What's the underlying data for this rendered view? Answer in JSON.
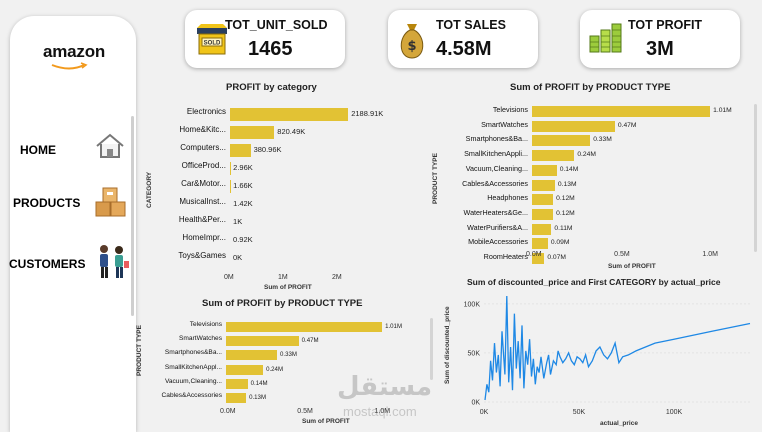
{
  "sidebar": {
    "logo": "amazon",
    "items": [
      {
        "label": "HOME",
        "icon": "home-icon"
      },
      {
        "label": "PRODUCTS",
        "icon": "boxes-icon"
      },
      {
        "label": "CUSTOMERS",
        "icon": "customers-icon"
      }
    ]
  },
  "kpis": [
    {
      "title": "TOT_UNIT_SOLD",
      "value": "1465",
      "icon": "store-sold-icon",
      "icon_text": "SOLD"
    },
    {
      "title": "TOT SALES",
      "value": "4.58M",
      "icon": "money-bag-icon"
    },
    {
      "title": "TOT PROFIT",
      "value": "3M",
      "icon": "coin-stacks-icon"
    }
  ],
  "colors": {
    "bar": "#e2c234",
    "line": "#1e88e5",
    "background": "#f1f1f1",
    "card": "#ffffff"
  },
  "charts": {
    "profit_by_category": {
      "title": "PROFIT by category",
      "ylabel": "CATEGORY",
      "xlabel": "Sum of PROFIT",
      "xticks": [
        "0M",
        "1M",
        "2M"
      ],
      "rows": [
        {
          "label": "Electronics",
          "value_label": "2188.91K"
        },
        {
          "label": "Home&Kitc...",
          "value_label": "820.49K"
        },
        {
          "label": "Computers...",
          "value_label": "380.96K"
        },
        {
          "label": "OfficeProd...",
          "value_label": "2.96K"
        },
        {
          "label": "Car&Motor...",
          "value_label": "1.66K"
        },
        {
          "label": "MusicalInst...",
          "value_label": "1.42K"
        },
        {
          "label": "Health&Per...",
          "value_label": "1K"
        },
        {
          "label": "HomeImpr...",
          "value_label": "0.92K"
        },
        {
          "label": "Toys&Games",
          "value_label": "0K"
        }
      ]
    },
    "profit_by_type_right": {
      "title": "Sum of PROFIT by PRODUCT TYPE",
      "ylabel": "PRODUCT TYPE",
      "xlabel": "Sum of PROFIT",
      "xticks": [
        "0.0M",
        "0.5M",
        "1.0M"
      ],
      "rows": [
        {
          "label": "Televisions",
          "value_label": "1.01M"
        },
        {
          "label": "SmartWatches",
          "value_label": "0.47M"
        },
        {
          "label": "Smartphones&Ba...",
          "value_label": "0.33M"
        },
        {
          "label": "SmallKitchenAppli...",
          "value_label": "0.24M"
        },
        {
          "label": "Vacuum,Cleaning...",
          "value_label": "0.14M"
        },
        {
          "label": "Cables&Accessories",
          "value_label": "0.13M"
        },
        {
          "label": "Headphones",
          "value_label": "0.12M"
        },
        {
          "label": "WaterHeaters&Ge...",
          "value_label": "0.12M"
        },
        {
          "label": "WaterPurifiers&A...",
          "value_label": "0.11M"
        },
        {
          "label": "MobileAccessories",
          "value_label": "0.09M"
        },
        {
          "label": "RoomHeaters",
          "value_label": "0.07M"
        }
      ]
    },
    "profit_by_type_bottom": {
      "title": "Sum of PROFIT by PRODUCT TYPE",
      "ylabel": "PRODUCT TYPE",
      "xlabel": "Sum of PROFIT",
      "xticks": [
        "0.0M",
        "0.5M",
        "1.0M"
      ],
      "rows": [
        {
          "label": "Televisions",
          "value_label": "1.01M"
        },
        {
          "label": "SmartWatches",
          "value_label": "0.47M"
        },
        {
          "label": "Smartphones&Ba...",
          "value_label": "0.33M"
        },
        {
          "label": "SmallKitchenAppl...",
          "value_label": "0.24M"
        },
        {
          "label": "Vacuum,Cleaning...",
          "value_label": "0.14M"
        },
        {
          "label": "Cables&Accessories",
          "value_label": "0.13M"
        }
      ]
    },
    "line": {
      "title": "Sum of discounted_price and First CATEGORY by actual_price",
      "ylabel": "Sum of discounted_price",
      "xlabel": "actual_price",
      "yticks": [
        "0K",
        "50K",
        "100K"
      ],
      "xticks": [
        "0K",
        "50K",
        "100K"
      ]
    }
  },
  "watermark": {
    "arabic": "مستقل",
    "latin": "mostaql.com"
  },
  "chart_data": [
    {
      "type": "bar",
      "title": "PROFIT by category",
      "xlabel": "Sum of PROFIT",
      "ylabel": "CATEGORY",
      "categories": [
        "Electronics",
        "Home&Kitc...",
        "Computers...",
        "OfficeProd...",
        "Car&Motor...",
        "MusicalInst...",
        "Health&Per...",
        "HomeImpr...",
        "Toys&Games"
      ],
      "values": [
        2188.91,
        820.49,
        380.96,
        2.96,
        1.66,
        1.42,
        1.0,
        0.92,
        0
      ],
      "xlim": [
        0,
        2500
      ]
    },
    {
      "type": "bar",
      "title": "Sum of PROFIT by PRODUCT TYPE",
      "xlabel": "Sum of PROFIT",
      "ylabel": "PRODUCT TYPE",
      "categories": [
        "Televisions",
        "SmartWatches",
        "Smartphones&Ba...",
        "SmallKitchenAppli...",
        "Vacuum,Cleaning...",
        "Cables&Accessories",
        "Headphones",
        "WaterHeaters&Ge...",
        "WaterPurifiers&A...",
        "MobileAccessories",
        "RoomHeaters"
      ],
      "values": [
        1.01,
        0.47,
        0.33,
        0.24,
        0.14,
        0.13,
        0.12,
        0.12,
        0.11,
        0.09,
        0.07
      ],
      "xlim": [
        0,
        1.1
      ]
    },
    {
      "type": "bar",
      "title": "Sum of PROFIT by PRODUCT TYPE",
      "xlabel": "Sum of PROFIT",
      "ylabel": "PRODUCT TYPE",
      "categories": [
        "Televisions",
        "SmartWatches",
        "Smartphones&Ba...",
        "SmallKitchenAppl...",
        "Vacuum,Cleaning...",
        "Cables&Accessories"
      ],
      "values": [
        1.01,
        0.47,
        0.33,
        0.24,
        0.14,
        0.13
      ],
      "xlim": [
        0,
        1.1
      ]
    },
    {
      "type": "line",
      "title": "Sum of discounted_price and First CATEGORY by actual_price",
      "xlabel": "actual_price",
      "ylabel": "Sum of discounted_price",
      "xlim": [
        0,
        140000
      ],
      "ylim": [
        0,
        110000
      ],
      "x": [
        500,
        1500,
        2500,
        3500,
        4500,
        5500,
        6500,
        7500,
        8500,
        9500,
        11000,
        12000,
        13000,
        14000,
        15000,
        16000,
        17000,
        18000,
        19000,
        20000,
        21000,
        22000,
        23000,
        24000,
        25000,
        26000,
        27000,
        28000,
        29000,
        30000,
        31500,
        33000,
        34000,
        35000,
        36500,
        38000,
        39000,
        40000,
        41500,
        43000,
        44500,
        46000,
        47500,
        49000,
        50500,
        52000,
        53500,
        55000,
        57000,
        59000,
        61000,
        63000,
        65000,
        67000,
        69000,
        71000,
        73000,
        76000,
        80000,
        85000,
        90000,
        100000,
        110000,
        120000,
        130000,
        140000
      ],
      "y": [
        2000,
        18000,
        10000,
        42000,
        22000,
        60000,
        30000,
        48000,
        16000,
        72000,
        28000,
        108000,
        20000,
        56000,
        12000,
        90000,
        34000,
        62000,
        24000,
        78000,
        14000,
        52000,
        38000,
        64000,
        26000,
        44000,
        18000,
        36000,
        30000,
        46000,
        24000,
        40000,
        48000,
        28000,
        42000,
        38000,
        52000,
        46000,
        40000,
        44000,
        50000,
        42000,
        38000,
        46000,
        44000,
        40000,
        48000,
        36000,
        42000,
        52000,
        56000,
        48000,
        44000,
        50000,
        60000,
        40000,
        46000,
        48000,
        52000,
        56000,
        60000,
        64000,
        68000,
        72000,
        76000,
        80000
      ]
    }
  ]
}
